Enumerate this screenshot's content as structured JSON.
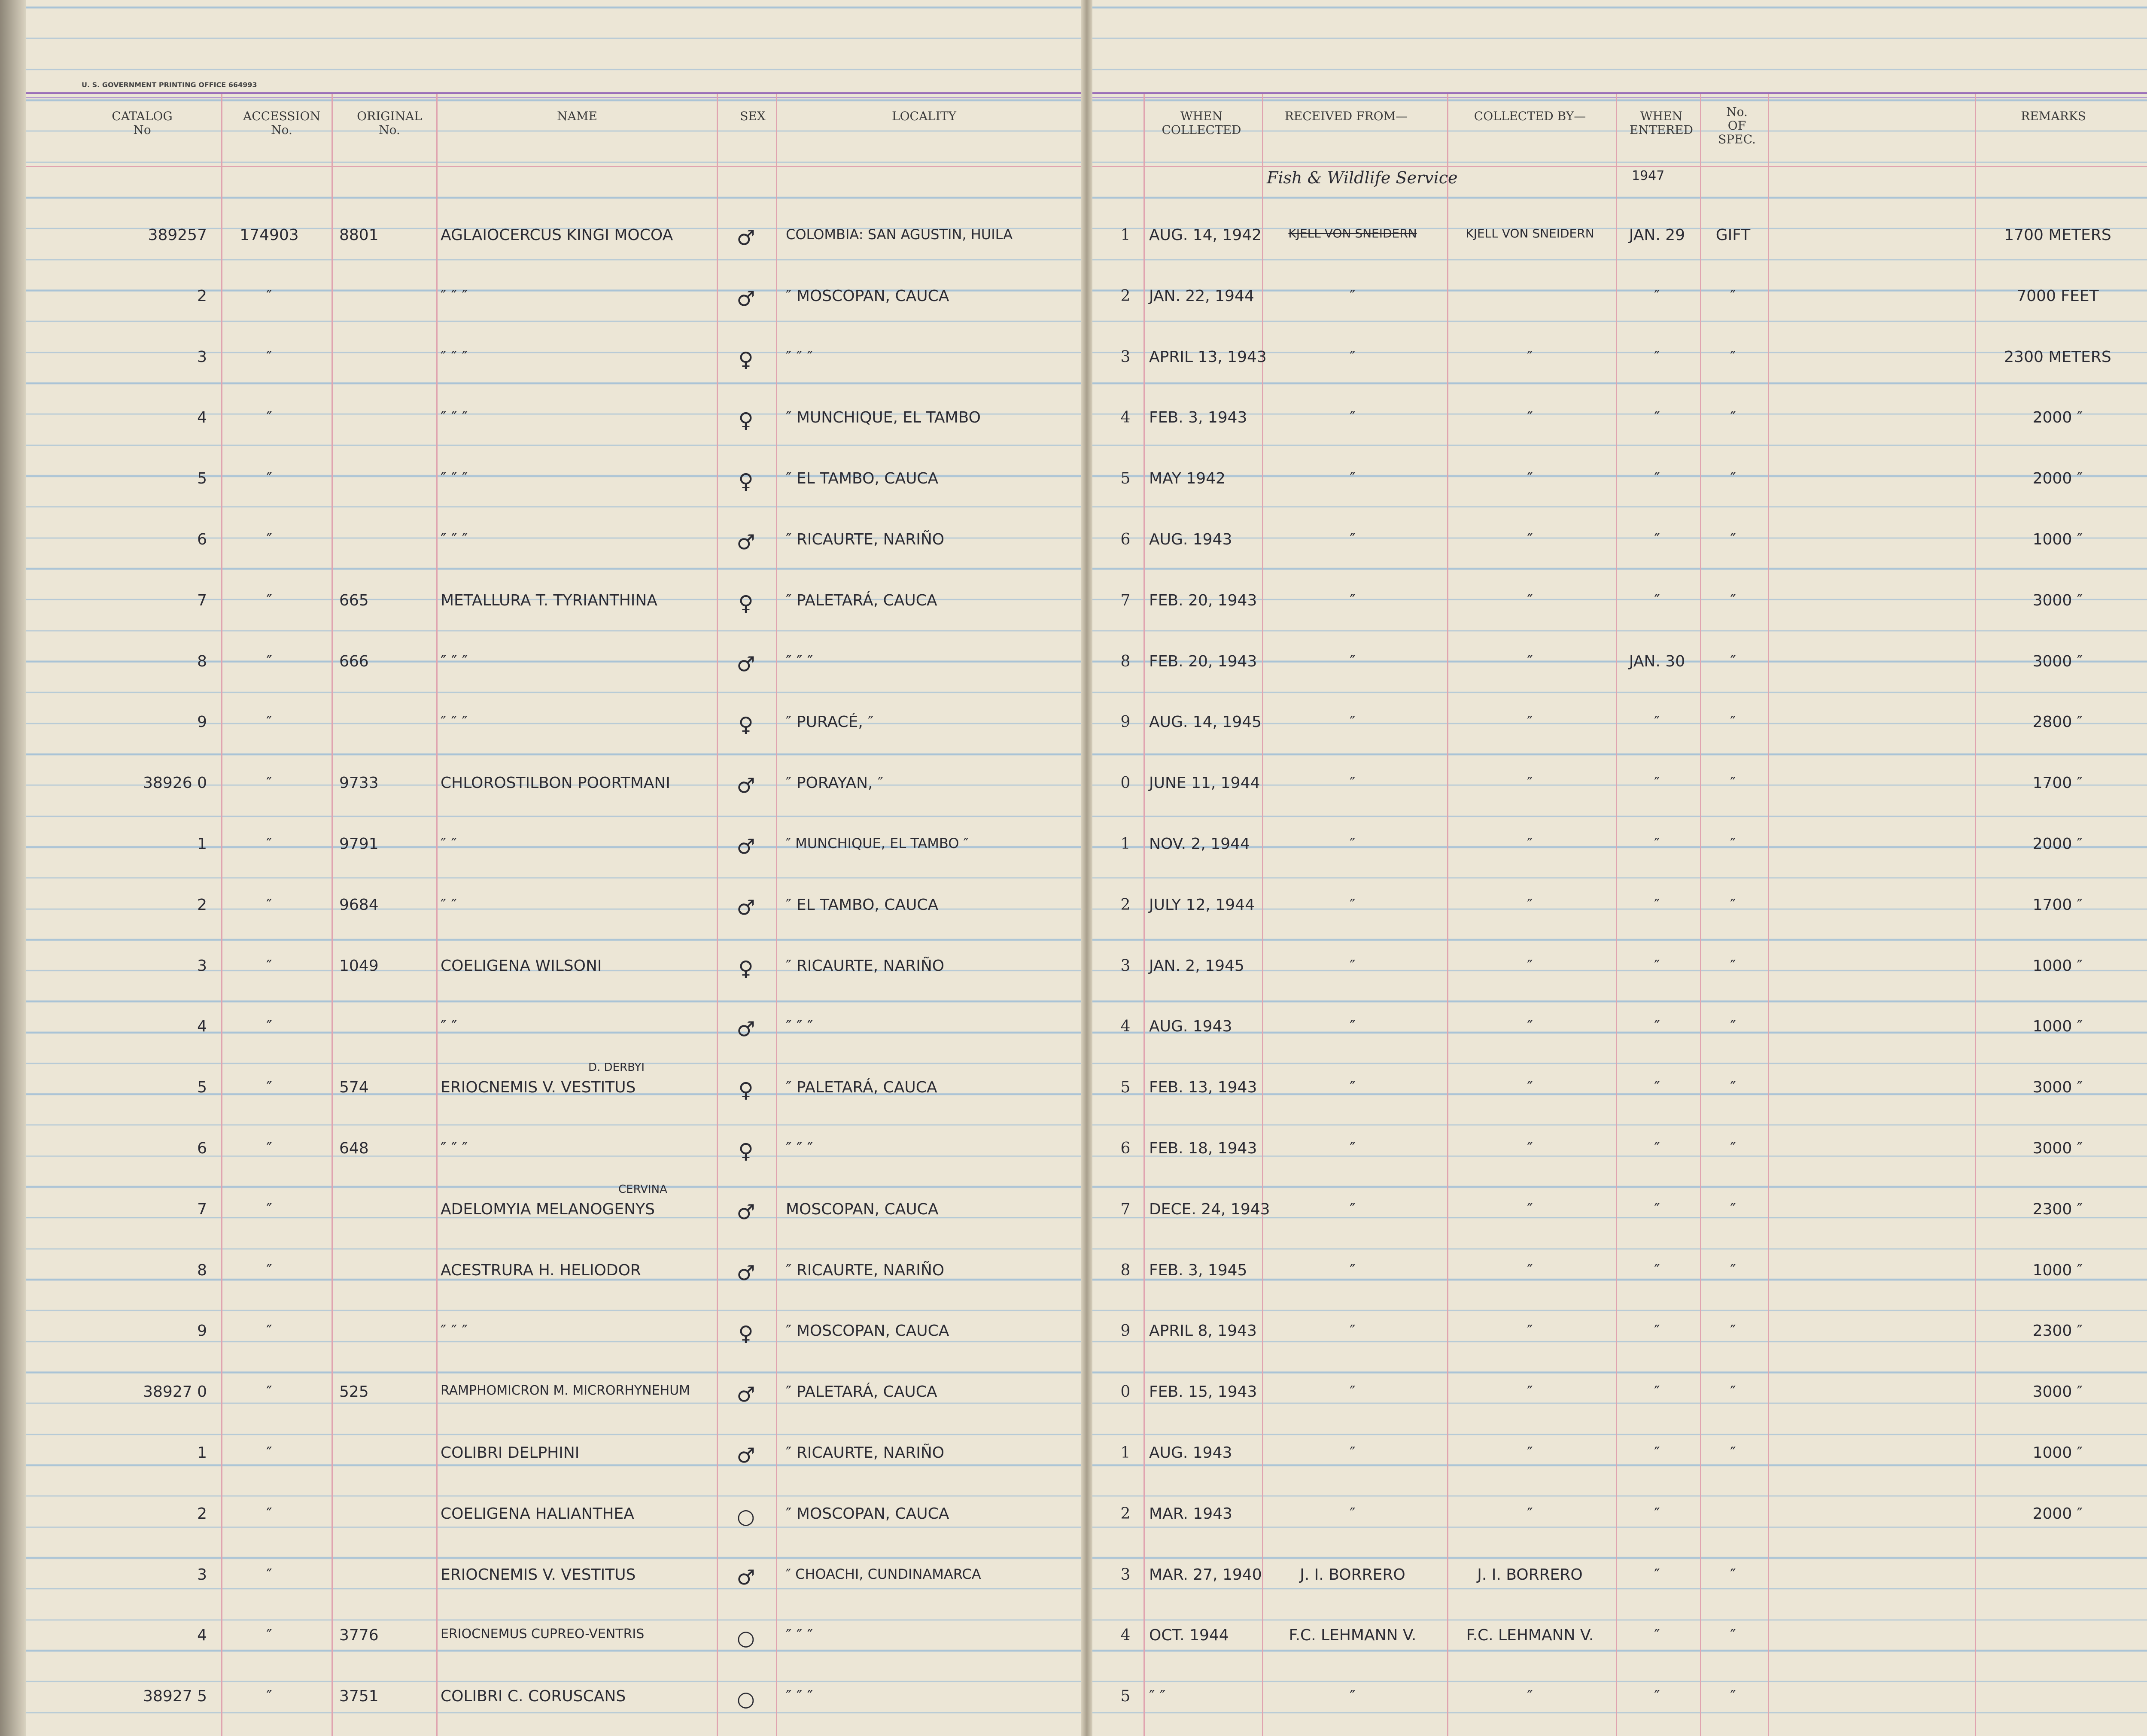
{
  "header": {
    "printer": "U. S. GOVERNMENT PRINTING OFFICE 664993",
    "columns": [
      "CATALOG\nNo",
      "ACCESSION\nNo.",
      "ORIGINAL\nNo.",
      "NAME",
      "SEX",
      "LOCALITY",
      "WHEN\nCOLLECTED",
      "RECEIVED FROM—",
      "COLLECTED BY—",
      "WHEN\nENTERED",
      "No.\nOF\nSPEC.",
      "REMARKS"
    ]
  },
  "notes": {
    "received_from": "Fish & Wildlife Service",
    "entered_year": "1947"
  },
  "table": {
    "rows": [
      [
        "389257",
        "174903",
        "8801",
        "AGLAIOCERCUS KINGI MOCOA",
        "♂",
        "COLOMBIA: SAN AGUSTIN, HUILA",
        "1",
        "AUG. 14, 1942",
        "KJELL VON SNEIDERN",
        "KJELL VON SNEIDERN",
        "JAN. 29",
        "GIFT",
        "1700 METERS"
      ],
      [
        "2",
        "″",
        null,
        "″ ″ ″",
        "♂",
        "″ MOSCOPAN, CAUCA",
        "2",
        "JAN. 22, 1944",
        "″",
        null,
        "″",
        "″",
        "7000 FEET"
      ],
      [
        "3",
        "″",
        null,
        "″ ″ ″",
        "♀",
        "″ ″ ″",
        "3",
        "APRIL 13, 1943",
        "″",
        "″",
        "″",
        "″",
        "2300 METERS"
      ],
      [
        "4",
        "″",
        null,
        "″ ″ ″",
        "♀",
        "″ MUNCHIQUE, EL TAMBO",
        "4",
        "FEB. 3, 1943",
        "″",
        "″",
        "″",
        "″",
        "2000 ″"
      ],
      [
        "5",
        "″",
        null,
        "″ ″ ″",
        "♀",
        "″ EL TAMBO, CAUCA",
        "5",
        "MAY 1942",
        "″",
        "″",
        "″",
        "″",
        "2000 ″"
      ],
      [
        "6",
        "″",
        null,
        "″ ″ ″",
        "♂",
        "″ RICAURTE, NARIÑO",
        "6",
        "AUG. 1943",
        "″",
        "″",
        "″",
        "″",
        "1000 ″"
      ],
      [
        "7",
        "″",
        "665",
        "METALLURA T. TYRIANTHINA",
        "♀",
        "″ PALETARÁ, CAUCA",
        "7",
        "FEB. 20, 1943",
        "″",
        "″",
        "″",
        "″",
        "3000 ″"
      ],
      [
        "8",
        "″",
        "666",
        "″ ″ ″",
        "♂",
        "″ ″ ″",
        "8",
        "FEB. 20, 1943",
        "″",
        "″",
        "JAN. 30",
        "″",
        "3000 ″"
      ],
      [
        "9",
        "″",
        null,
        "″ ″ ″",
        "♀",
        "″ PURACÉ, ″",
        "9",
        "AUG. 14, 1945",
        "″",
        "″",
        "″",
        "″",
        "2800 ″"
      ],
      [
        "38926 0",
        "″",
        "9733",
        "CHLOROSTILBON POORTMANI",
        "♂",
        "″ PORAYAN, ″",
        "0",
        "JUNE 11, 1944",
        "″",
        "″",
        "″",
        "″",
        "1700 ″"
      ],
      [
        "1",
        "″",
        "9791",
        "″ ″",
        "♂",
        "″ MUNCHIQUE, EL TAMBO ″",
        "1",
        "NOV. 2, 1944",
        "″",
        "″",
        "″",
        "″",
        "2000 ″"
      ],
      [
        "2",
        "″",
        "9684",
        "″ ″",
        "♂",
        "″ EL TAMBO, CAUCA",
        "2",
        "JULY 12, 1944",
        "″",
        "″",
        "″",
        "″",
        "1700 ″"
      ],
      [
        "3",
        "″",
        "1049",
        "COELIGENA WILSONI",
        "♀",
        "″ RICAURTE, NARIÑO",
        "3",
        "JAN. 2, 1945",
        "″",
        "″",
        "″",
        "″",
        "1000 ″"
      ],
      [
        "4",
        "″",
        null,
        "″ ″",
        "♂",
        "″ ″ ″",
        "4",
        "AUG. 1943",
        "″",
        "″",
        "″",
        "″",
        "1000 ″"
      ],
      [
        "5",
        "″",
        "574",
        "ERIOCNEMIS V. VESTITUS",
        "♀",
        "″ PALETARÁ, CAUCA",
        "5",
        "FEB. 13, 1943",
        "″",
        "″",
        "″",
        "″",
        "3000 ″"
      ],
      [
        "6",
        "″",
        "648",
        "″ ″ ″",
        "♀",
        "″ ″ ″",
        "6",
        "FEB. 18, 1943",
        "″",
        "″",
        "″",
        "″",
        "3000 ″"
      ],
      [
        "7",
        "″",
        null,
        "ADELOMYIA MELANOGENYS",
        "♂",
        "MOSCOPAN, CAUCA",
        "7",
        "DECE. 24, 1943",
        "″",
        "″",
        "″",
        "″",
        "2300 ″"
      ],
      [
        "8",
        "″",
        null,
        "ACESTRURA H. HELIODOR",
        "♂",
        "″ RICAURTE, NARIÑO",
        "8",
        "FEB. 3, 1945",
        "″",
        "″",
        "″",
        "″",
        "1000 ″"
      ],
      [
        "9",
        "″",
        null,
        "″ ″ ″",
        "♀",
        "″ MOSCOPAN, CAUCA",
        "9",
        "APRIL 8, 1943",
        "″",
        "″",
        "″",
        "″",
        "2300 ″"
      ],
      [
        "38927 0",
        "″",
        "525",
        "RAMPHOMICRON M. MICRORHYNEHUM",
        "♂",
        "″ PALETARÁ, CAUCA",
        "0",
        "FEB. 15, 1943",
        "″",
        "″",
        "″",
        "″",
        "3000 ″"
      ],
      [
        "1",
        "″",
        null,
        "COLIBRI DELPHINI",
        "♂",
        "″ RICAURTE, NARIÑO",
        "1",
        "AUG. 1943",
        "″",
        "″",
        "″",
        "″",
        "1000 ″"
      ],
      [
        "2",
        "″",
        null,
        "COELIGENA HALIANTHEA",
        "○",
        "″ MOSCOPAN, CAUCA",
        "2",
        "MAR. 1943",
        "″",
        "″",
        "″",
        null,
        "2000 ″"
      ],
      [
        "3",
        "″",
        null,
        "ERIOCNEMIS V. VESTITUS",
        "♂",
        "″ CHOACHI, CUNDINAMARCA",
        "3",
        "MAR. 27, 1940",
        "J. I. BORRERO",
        "J. I. BORRERO",
        "″",
        "″",
        null
      ],
      [
        "4",
        "″",
        "3776",
        "ERIOCNEMUS CUPREO-VENTRIS",
        "○",
        "″ ″ ″",
        "4",
        "OCT. 1944",
        "F.C. LEHMANN V.",
        "F.C. LEHMANN V.",
        "″",
        "″",
        null
      ],
      [
        "38927 5",
        "″",
        "3751",
        "COLIBRI C. CORUSCANS",
        "○",
        "″ ″ ″",
        "5",
        "″ ″",
        "″",
        "″",
        "″",
        "″",
        null
      ]
    ],
    "corrections": [
      {
        "row": 14,
        "text": "D. DERBYI"
      },
      {
        "row": 16,
        "text": "CERVINA"
      }
    ]
  }
}
